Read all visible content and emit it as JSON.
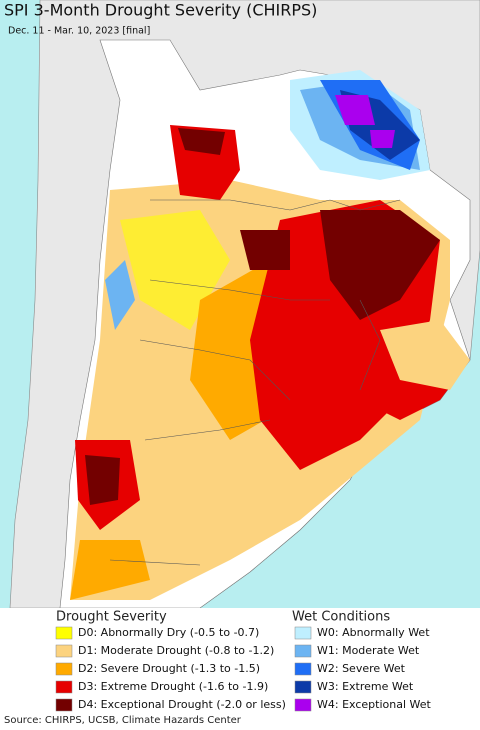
{
  "header": {
    "title": "SPI 3-Month Drought Severity (CHIRPS)",
    "subtitle": "Dec. 11 - Mar. 10, 2023 [final]"
  },
  "legend": {
    "drought": {
      "heading": "Drought Severity",
      "items": [
        {
          "label": "D0: Abnormally Dry (-0.5 to -0.7)",
          "color": "#ffff00"
        },
        {
          "label": "D1: Moderate Drought (-0.8 to -1.2)",
          "color": "#fcd37f"
        },
        {
          "label": "D2: Severe Drought (-1.3 to -1.5)",
          "color": "#ffaa00"
        },
        {
          "label": "D3: Extreme Drought (-1.6 to -1.9)",
          "color": "#e60000"
        },
        {
          "label": "D4: Exceptional Drought (-2.0 or less)",
          "color": "#730000"
        }
      ]
    },
    "wet": {
      "heading": "Wet Conditions",
      "items": [
        {
          "label": "W0: Abnormally Wet",
          "color": "#bfefff"
        },
        {
          "label": "W1: Moderate Wet",
          "color": "#6cb4f2"
        },
        {
          "label": "W2: Severe Wet",
          "color": "#1f6ef5"
        },
        {
          "label": "W3: Extreme Wet",
          "color": "#0c3aa8"
        },
        {
          "label": "W4: Exceptional Wet",
          "color": "#aa00ee"
        }
      ]
    }
  },
  "footer": {
    "source": "Source: CHIRPS, UCSB, Climate Hazards Center"
  }
}
